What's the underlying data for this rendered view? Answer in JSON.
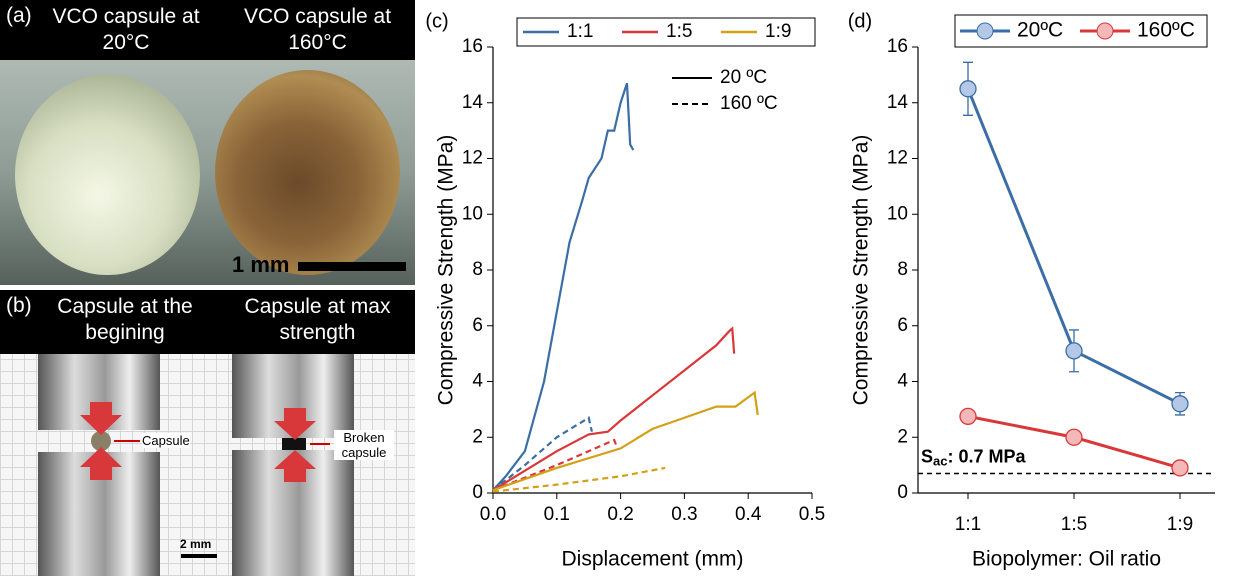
{
  "photos": {
    "a": {
      "label": "(a)",
      "left_title": "VCO capsule at 20°C",
      "right_title": "VCO capsule at 160°C",
      "scale": "1 mm"
    },
    "b": {
      "label": "(b)",
      "left_title": "Capsule at the begining",
      "right_title": "Capsule at max strength",
      "left_note": "Capsule",
      "right_note": "Broken capsule",
      "scale": "2 mm"
    }
  },
  "chart_data": [
    {
      "type": "line",
      "panel_label": "(c)",
      "xlabel": "Displacement (mm)",
      "ylabel": "Compressive Strength (MPa)",
      "xlim": [
        0,
        0.5
      ],
      "xticks": [
        {
          "value": 0,
          "label": "0.0"
        },
        0.1,
        0.2,
        0.3,
        0.4,
        0.5
      ],
      "ylim": [
        0,
        16
      ],
      "yticks": [
        0,
        2,
        4,
        6,
        8,
        10,
        12,
        14,
        16
      ],
      "legend": "top",
      "line_styles": [
        {
          "label": "20 ºC",
          "dash": "solid"
        },
        {
          "label": "160 ºC",
          "dash": "dashed"
        }
      ],
      "series": [
        {
          "name": "1:1",
          "color": "#3a6ea5",
          "curves": [
            {
              "x": [
                0,
                0.02,
                0.05,
                0.08,
                0.1,
                0.12,
                0.14,
                0.15,
                0.17,
                0.18,
                0.19,
                0.2,
                0.21,
                0.215,
                0.22
              ],
              "values": [
                0.1,
                0.6,
                1.5,
                4,
                6.5,
                9,
                10.5,
                11.3,
                12,
                13,
                13,
                14,
                14.7,
                12.5,
                12.3
              ]
            },
            {
              "x": [
                0,
                0.05,
                0.1,
                0.15,
                0.155
              ],
              "values": [
                0.1,
                1,
                2,
                2.7,
                2.2
              ]
            }
          ]
        },
        {
          "name": "1:5",
          "color": "#d9383a",
          "curves": [
            {
              "x": [
                0,
                0.05,
                0.1,
                0.15,
                0.18,
                0.2,
                0.25,
                0.3,
                0.35,
                0.37,
                0.375,
                0.378
              ],
              "values": [
                0.1,
                0.8,
                1.5,
                2.1,
                2.2,
                2.6,
                3.5,
                4.4,
                5.3,
                5.8,
                5.9,
                5.0
              ]
            },
            {
              "x": [
                0,
                0.1,
                0.19,
                0.195
              ],
              "values": [
                0.1,
                1,
                1.9,
                1.6
              ]
            }
          ]
        },
        {
          "name": "1:9",
          "color": "#d4a017",
          "curves": [
            {
              "x": [
                0,
                0.1,
                0.2,
                0.25,
                0.3,
                0.35,
                0.38,
                0.41,
                0.415
              ],
              "values": [
                0.1,
                0.9,
                1.6,
                2.3,
                2.7,
                3.1,
                3.1,
                3.6,
                2.8
              ]
            },
            {
              "x": [
                0,
                0.1,
                0.2,
                0.27
              ],
              "values": [
                0.05,
                0.3,
                0.6,
                0.9
              ]
            }
          ]
        }
      ]
    },
    {
      "type": "errorbar-line",
      "panel_label": "(d)",
      "xlabel": "Biopolymer: Oil ratio",
      "ylabel": "Compressive Strength (MPa)",
      "categories": [
        "1:1",
        "1:5",
        "1:9"
      ],
      "ylim": [
        0,
        16
      ],
      "yticks": [
        0,
        2,
        4,
        6,
        8,
        10,
        12,
        14,
        16
      ],
      "legend": "top",
      "series": [
        {
          "name": "20ºC",
          "color": "#3a6ea5",
          "marker_fill": "#b4c7e7",
          "values": [
            14.5,
            5.1,
            3.2
          ],
          "errors": [
            0.95,
            0.75,
            0.4
          ]
        },
        {
          "name": "160ºC",
          "color": "#d9383a",
          "marker_fill": "#f4b8b8",
          "values": [
            2.75,
            2.0,
            0.9
          ],
          "errors": [
            0.1,
            0.1,
            0.1
          ]
        }
      ],
      "reference": {
        "value": 0.7,
        "label": "S",
        "label_sub": "ac",
        "label_suffix": ": 0.7 MPa"
      }
    }
  ]
}
